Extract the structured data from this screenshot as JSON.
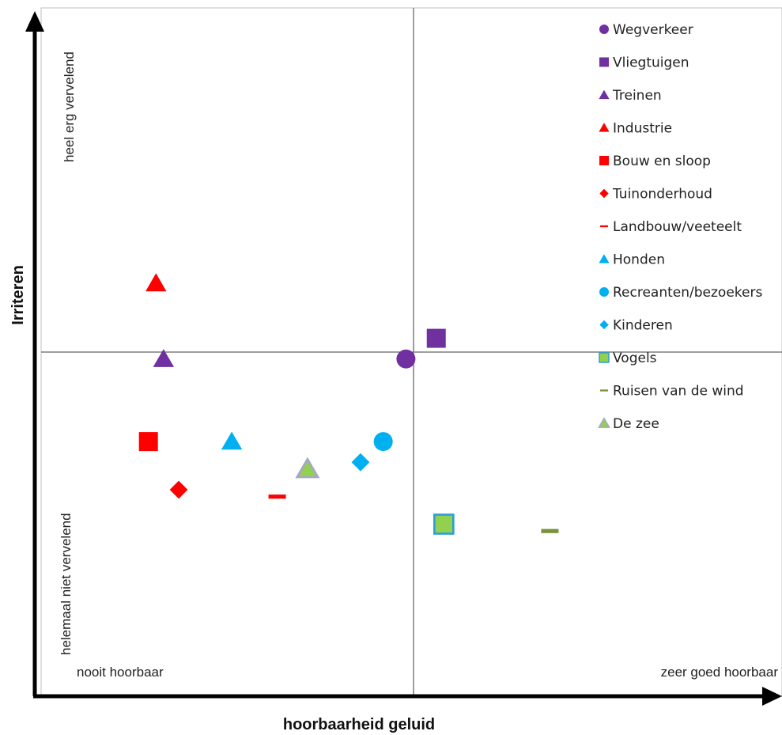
{
  "chart_data": {
    "type": "scatter",
    "title": "",
    "xlabel": "hoorbaarheid geluid",
    "ylabel": "Irriteren",
    "x_low_label": "nooit hoorbaar",
    "x_high_label": "zeer goed hoorbaar",
    "y_low_label": "helemaal niet vervelend",
    "y_high_label": "heel erg vervelend",
    "xlim": [
      0,
      10
    ],
    "ylim": [
      0,
      10
    ],
    "quadrant_lines": {
      "x": 5,
      "y": 5
    },
    "legend_position": "top-right",
    "series": [
      {
        "name": "Wegverkeer",
        "marker": "circle",
        "color": "#7030A0",
        "x": 4.9,
        "y": 4.9
      },
      {
        "name": "Vliegtuigen",
        "marker": "square",
        "color": "#7030A0",
        "x": 5.3,
        "y": 5.2
      },
      {
        "name": "Treinen",
        "marker": "triangle",
        "color": "#7030A0",
        "x": 1.7,
        "y": 4.9
      },
      {
        "name": "Industrie",
        "marker": "triangle",
        "color": "#FF0000",
        "x": 1.6,
        "y": 6.0
      },
      {
        "name": "Bouw en sloop",
        "marker": "square",
        "color": "#FF0000",
        "x": 1.5,
        "y": 3.7
      },
      {
        "name": "Tuinonderhoud",
        "marker": "diamond",
        "color": "#FF0000",
        "x": 1.9,
        "y": 3.0
      },
      {
        "name": "Landbouw/veeteelt",
        "marker": "dash",
        "color": "#FF0000",
        "x": 3.2,
        "y": 2.9
      },
      {
        "name": "Honden",
        "marker": "triangle",
        "color": "#00B0F0",
        "x": 2.6,
        "y": 3.7
      },
      {
        "name": "Recreanten/bezoekers",
        "marker": "circle",
        "color": "#00B0F0",
        "x": 4.6,
        "y": 3.7
      },
      {
        "name": "Kinderen",
        "marker": "diamond",
        "color": "#00B0F0",
        "x": 4.3,
        "y": 3.4
      },
      {
        "name": "Vogels",
        "marker": "square",
        "color": "#92D050",
        "stroke": "#2E9FD8",
        "x": 5.4,
        "y": 2.5
      },
      {
        "name": "Ruisen van de wind",
        "marker": "dash",
        "color": "#77933C",
        "x": 6.8,
        "y": 2.4
      },
      {
        "name": "De zee",
        "marker": "triangle",
        "color": "#92D050",
        "stroke": "#A6A6C8",
        "x": 3.6,
        "y": 3.3
      }
    ]
  }
}
